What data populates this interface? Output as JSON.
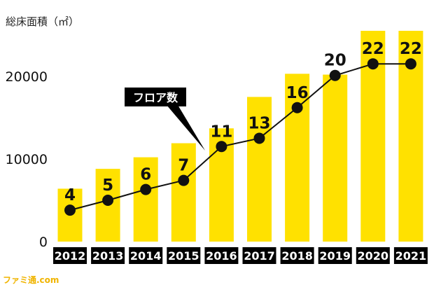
{
  "chart_data": {
    "type": "bar",
    "title": "",
    "ylabel": "総床面積（㎡）",
    "xlabel": "",
    "ylim": [
      0,
      25500
    ],
    "yticks": [
      0,
      10000,
      20000
    ],
    "categories": [
      "2012",
      "2013",
      "2014",
      "2015",
      "2016",
      "2017",
      "2018",
      "2019",
      "2020",
      "2021"
    ],
    "bar_values": [
      6400,
      8800,
      10200,
      11900,
      13700,
      17500,
      20300,
      20200,
      25500,
      25500
    ],
    "line_series": {
      "name": "フロア数",
      "values": [
        4,
        5,
        6,
        7,
        11,
        13,
        16,
        20,
        22,
        22
      ],
      "plot_y": [
        3800,
        5000,
        6300,
        7400,
        11500,
        12500,
        16200,
        20100,
        21500,
        21500
      ]
    },
    "annotation": "フロア数",
    "grid": false,
    "colors": {
      "bar": "#ffe100",
      "line": "#111111",
      "marker": "#111111",
      "label_bg": "#000000"
    }
  },
  "watermark": "ファミ通.com"
}
